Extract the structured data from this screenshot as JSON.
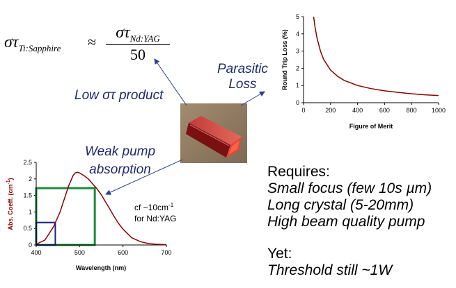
{
  "equation": {
    "lhs_symbol": "στ",
    "lhs_subscript": "Ti:Sapphire",
    "approx": "≈",
    "num_symbol": "στ",
    "num_subscript": "Nd:YAG",
    "denominator": "50"
  },
  "labels": {
    "low_product": "Low στ product",
    "parasitic_line1": "Parasitic",
    "parasitic_line2": "Loss",
    "weak_line1": "Weak pump",
    "weak_line2": "absorption",
    "cf_line1": "cf ~10cm",
    "cf_sup": "-1",
    "cf_line2": "for Nd:YAG"
  },
  "requirements": {
    "heading": "Requires:",
    "items": [
      "Small focus (few 10s µm)",
      "Long crystal (5-20mm)",
      "High beam quality pump"
    ],
    "yet_heading": "Yet:",
    "yet_item": "Threshold still ~1W"
  },
  "colors": {
    "curve": "#8b0000",
    "arrow": "#2a3f8f",
    "green_box": "#1a8a3a",
    "blue_box": "#1a237e",
    "text_blue": "#1f2a6b"
  },
  "chart_data": [
    {
      "type": "line",
      "xlabel": "Figure of Merit",
      "ylabel": "Round Trip Loss (%)",
      "xlim": [
        0,
        1000
      ],
      "ylim": [
        0,
        5
      ],
      "xticks": [
        "0",
        "200",
        "400",
        "600",
        "800",
        "1000"
      ],
      "yticks": [
        "0",
        "1",
        "2",
        "3",
        "4",
        "5"
      ],
      "series": [
        {
          "x": [
            75,
            85,
            100,
            125,
            150,
            200,
            250,
            300,
            400,
            500,
            600,
            700,
            800,
            900,
            1000
          ],
          "values": [
            5.0,
            4.4,
            3.75,
            3.0,
            2.5,
            1.9,
            1.55,
            1.3,
            1.0,
            0.82,
            0.69,
            0.6,
            0.52,
            0.46,
            0.42
          ]
        }
      ]
    },
    {
      "type": "line",
      "xlabel": "Wavelength (nm)",
      "ylabel": "Abs. Coeff. (cm",
      "ylabel_sup": "-1",
      "ylabel_end": ")",
      "xlim": [
        400,
        700
      ],
      "ylim": [
        0,
        2.5
      ],
      "xticks": [
        "400",
        "500",
        "600",
        "700"
      ],
      "yticks": [
        "0",
        "0.5",
        "1",
        "1.5",
        "2",
        "2.5"
      ],
      "series": [
        {
          "x": [
            400,
            420,
            440,
            455,
            465,
            475,
            485,
            490,
            495,
            500,
            510,
            520,
            530,
            540,
            550,
            560,
            570,
            580,
            590,
            600,
            620,
            640,
            660,
            680,
            700
          ],
          "values": [
            0.02,
            0.15,
            0.55,
            1.0,
            1.4,
            1.8,
            2.1,
            2.18,
            2.2,
            2.18,
            2.1,
            2.0,
            1.85,
            1.7,
            1.52,
            1.3,
            1.08,
            0.85,
            0.65,
            0.48,
            0.22,
            0.1,
            0.04,
            0.02,
            0.01
          ]
        }
      ],
      "markers": [
        {
          "name": "green",
          "x": 535,
          "y": 1.72
        },
        {
          "name": "blue",
          "x": 444,
          "y": 0.68
        }
      ]
    }
  ]
}
